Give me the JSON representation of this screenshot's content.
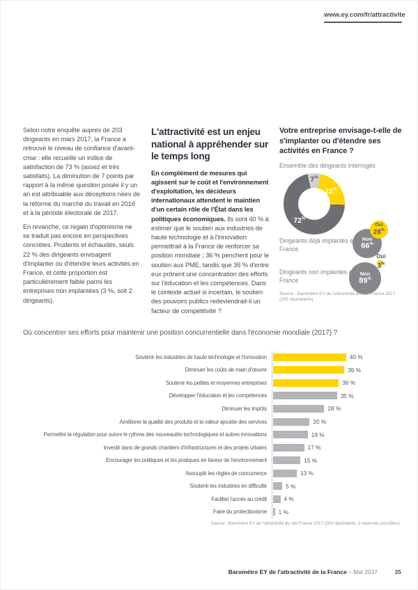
{
  "header": {
    "url": "www.ey.com/fr/attractivite"
  },
  "labels": {
    "percent": "%"
  },
  "intro": {
    "paragraph1": "Selon notre enquête auprès de 203 dirigeants en mars 2017, la France a retrouvé le niveau de confiance d'avant-crise : elle recueille un indice de satisfaction de 73 % (assez et très satisfaits). La diminution de 7 points par rapport à la même question posée il y un an est attribuable aux déceptions nées de la réforme du marché du travail en 2016 et à la période électorale de 2017.",
    "paragraph2": "En revanche, ce regain d'optimisme ne se traduit pas encore en perspectives concrètes. Prudents et échaudés, seuls 22 % des dirigeants envisagent d'implanter ou d'étendre leurs activités en France, et cette proportion est particulièrement faible parmi les entreprises non implantées (3 %, soit 2 dirigeants)."
  },
  "article": {
    "heading": "L'attractivité est un enjeu national à appréhender sur le temps long",
    "lead_bold": "En complément de mesures qui agissent sur le coût et l'environnement d'exploitation, les décideurs internationaux attendent le maintien d'un certain rôle de l'État dans les politiques économiques.",
    "body_rest": "Ils sont 40 % à estimer que le soutien aux industries de haute technologie et à l'innovation permettrait à la France de renforcer sa position mondiale ; 36 % penchent pour le soutien aux PME, tandis que 35 % d'entre eux prônent une concentration des efforts sur l'éducation et les compétences. Dans le contexte actuel si incertain, le soutien des pouvoirs publics redeviendrait-il un facteur de compétitivité ?"
  },
  "chart_data": [
    {
      "type": "pie",
      "donut": true,
      "title": "Votre entreprise envisage-t-elle de s'implanter ou d'étendre ses activités en France ?",
      "subtitle": "Ensemble des dirigeants interrogés",
      "start_rule": "first slice centered at 12 o'clock, clockwise",
      "slices": [
        {
          "label": "7",
          "value": 7,
          "color": "#d1d3d4",
          "text_color": "#55565a",
          "label_radius": 35
        },
        {
          "label": "22",
          "value": 22,
          "color": "#ffd400",
          "text_color": "#ffffff",
          "label_radius": 30
        },
        {
          "label": "72",
          "value": 72,
          "color": "#6d6e71",
          "text_color": "#ffffff",
          "label_radius": 32
        }
      ],
      "sub_stats": [
        {
          "group": "Dirigeants déjà implantés en France",
          "oui_label": "Oui",
          "oui": "28",
          "non_label": "Non",
          "non": "66"
        },
        {
          "group": "Dirigeants non implantés en France",
          "oui_label": "Oui",
          "oui": "3",
          "non_label": "Non",
          "non": "89"
        }
      ],
      "source": "Source : Baromètre EY de l'attractivité du site France 2017 (203 répondants)"
    },
    {
      "type": "bar",
      "orientation": "horizontal",
      "title": "Où concentrer ses efforts pour maintenir une position concurrentielle dans l'économie mondiale (2017) ?",
      "categories": [
        "Soutenir les industries de haute technologie et l'innovation",
        "Diminuer les coûts de main d'œuvre",
        "Soutenir les petites et moyennes entreprises",
        "Développer l'éducation et les compétences",
        "Diminuer les impôts",
        "Améliorer la qualité des produits et la valeur ajoutée des services",
        "Permettre la régulation pour suivre le rythme des nouveautés technologiques et autres innovations",
        "Investir dans de grands chantiers d'infrastructures et des projets urbains",
        "Encourager les politiques et les pratiques en faveur de l'environnement",
        "Assouplir les règles de concurrence",
        "Soutenir les industries en difficulté",
        "Faciliter l'accès au crédit",
        "Faire du protectionisme"
      ],
      "values": [
        40,
        39,
        36,
        35,
        28,
        20,
        19,
        17,
        15,
        13,
        5,
        4,
        1
      ],
      "value_suffix": " %",
      "xlim": [
        0,
        45
      ],
      "highlighted_count": 3,
      "highlight_color": "#ffd400",
      "bar_color": "#b3b5b8",
      "source": "Source : Baromètre EY de l'attractivité du site France 2017 (203 répondants, 3 réponses possibles)"
    }
  ],
  "footer": {
    "doc_title": "Baromètre EY de l'attractivité de la France",
    "doc_date": " – Mai 2017",
    "page_number": "35"
  }
}
